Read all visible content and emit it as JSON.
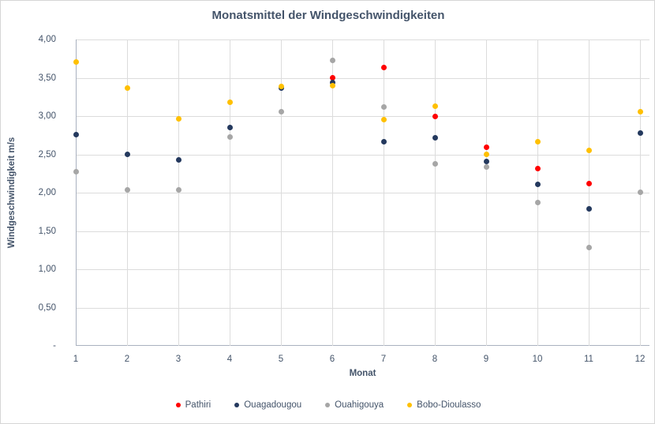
{
  "chart_data": {
    "type": "scatter",
    "title": "Monatsmittel der Windgeschwindigkeiten",
    "xlabel": "Monat",
    "ylabel": "Windgeschwindigkeit m/s",
    "x": [
      1,
      2,
      3,
      4,
      5,
      6,
      7,
      8,
      9,
      10,
      11,
      12
    ],
    "x_tick_labels": [
      "1",
      "2",
      "3",
      "4",
      "5",
      "6",
      "7",
      "8",
      "9",
      "10",
      "11",
      "12"
    ],
    "y_tick_labels": [
      "4,00",
      "3,50",
      "3,00",
      "2,50",
      "2,00",
      "1,50",
      "1,00",
      "0,50",
      "-"
    ],
    "ylim": [
      0,
      4
    ],
    "y_gridline_step": 0.5,
    "grid": true,
    "legend_position": "bottom",
    "series": [
      {
        "name": "Pathiri",
        "color": "#FF0000",
        "values": [
          null,
          null,
          null,
          null,
          null,
          3.5,
          3.63,
          3.0,
          2.59,
          2.31,
          2.12,
          null
        ]
      },
      {
        "name": "Ouagadougou",
        "color": "#24395E",
        "values": [
          2.76,
          2.5,
          2.43,
          2.85,
          3.37,
          3.44,
          2.67,
          2.72,
          2.41,
          2.11,
          1.79,
          2.78
        ]
      },
      {
        "name": "Ouahigouya",
        "color": "#A6A6A6",
        "values": [
          2.27,
          2.04,
          2.04,
          2.73,
          3.06,
          3.73,
          3.12,
          2.38,
          2.33,
          1.87,
          1.28,
          2.01
        ]
      },
      {
        "name": "Bobo-Dioulasso",
        "color": "#FFC000",
        "values": [
          3.71,
          3.37,
          2.96,
          3.18,
          3.39,
          3.4,
          2.95,
          3.13,
          2.5,
          2.66,
          2.55,
          3.06
        ]
      }
    ],
    "style": {
      "grid_color": "#dcdcdc",
      "axis_color": "#a9b1bf",
      "text_color": "#44546A"
    }
  }
}
